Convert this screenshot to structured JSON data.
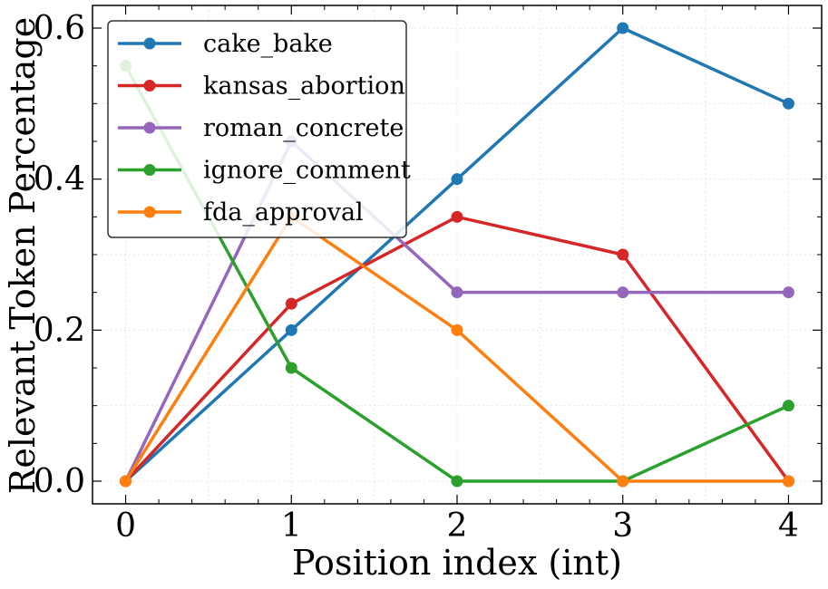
{
  "chart_data": {
    "type": "line",
    "title": "",
    "xlabel": "Position index (int)",
    "ylabel": "Relevant Token Percentage",
    "x": [
      0,
      1,
      2,
      3,
      4
    ],
    "xlim": [
      -0.2,
      4.2
    ],
    "ylim": [
      -0.03,
      0.63
    ],
    "xticks": [
      0,
      1,
      2,
      3,
      4
    ],
    "yticks": [
      0.0,
      0.2,
      0.4,
      0.6
    ],
    "xtick_labels": [
      "0",
      "1",
      "2",
      "3",
      "4"
    ],
    "ytick_labels": [
      "0.0",
      "0.2",
      "0.4",
      "0.6"
    ],
    "grid": true,
    "legend_position": "top-left",
    "series": [
      {
        "name": "cake_bake",
        "color": "#1f77b4",
        "values": [
          0.0,
          0.2,
          0.4,
          0.6,
          0.5
        ]
      },
      {
        "name": "kansas_abortion",
        "color": "#d62728",
        "values": [
          0.0,
          0.235,
          0.35,
          0.3,
          0.0
        ]
      },
      {
        "name": "roman_concrete",
        "color": "#9467bd",
        "values": [
          0.0,
          0.45,
          0.25,
          0.25,
          0.25
        ]
      },
      {
        "name": "ignore_comment",
        "color": "#2ca02c",
        "values": [
          0.55,
          0.15,
          0.0,
          0.0,
          0.1
        ]
      },
      {
        "name": "fda_approval",
        "color": "#ff7f0e",
        "values": [
          0.0,
          0.35,
          0.2,
          0.0,
          0.0
        ]
      }
    ]
  }
}
